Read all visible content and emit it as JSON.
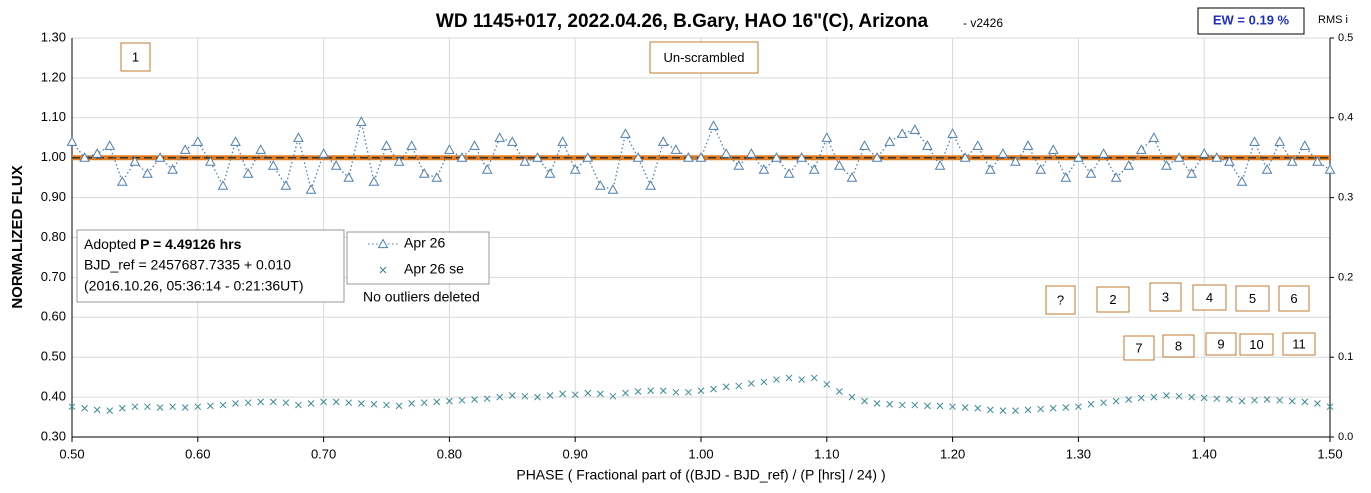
{
  "chart_data": {
    "type": "scatter",
    "title": "WD 1145+017, 2022.04.26, B.Gary, HAO 16\"(C), Arizona",
    "subtitle": "- v2426",
    "ew_label": "EW = 0.19 %",
    "y2_label": "RMS i",
    "y_label": "NORMALIZED FLUX",
    "x_label": "PHASE ( Fractional part of ((BJD - BJD_ref) / (P [hrs] / 24) )",
    "info": {
      "prefix": "Adopted ",
      "period": "P = 4.49126 hrs",
      "line2": "BJD_ref = 2457687.7335 + 0.010",
      "line3": "(2016.10.26, 05:36:14 - 0:21:36UT)"
    },
    "note": "No outliers deleted",
    "annotations": [
      "1",
      "Un-scrambled",
      "?",
      "2",
      "3",
      "4",
      "5",
      "6",
      "7",
      "8",
      "9",
      "10",
      "11"
    ],
    "model_level": 1.0,
    "grid": true,
    "xlim": [
      0.5,
      1.5
    ],
    "ylim": [
      0.3,
      1.3
    ],
    "y2lim": [
      0,
      0.5
    ],
    "xticks": [
      {
        "value": 0.5,
        "label": "0.50"
      },
      {
        "value": 0.6,
        "label": "0.60"
      },
      {
        "value": 0.7,
        "label": "0.70"
      },
      {
        "value": 0.8,
        "label": "0.80"
      },
      {
        "value": 0.9,
        "label": "0.90"
      },
      {
        "value": 1.0,
        "label": "1.00"
      },
      {
        "value": 1.1,
        "label": "1.10"
      },
      {
        "value": 1.2,
        "label": "1.20"
      },
      {
        "value": 1.3,
        "label": "1.30"
      },
      {
        "value": 1.4,
        "label": "1.40"
      },
      {
        "value": 1.5,
        "label": "1.50"
      }
    ],
    "yticks": [
      {
        "value": 0.3,
        "label": "0.30"
      },
      {
        "value": 0.4,
        "label": "0.40"
      },
      {
        "value": 0.5,
        "label": "0.50"
      },
      {
        "value": 0.6,
        "label": "0.60"
      },
      {
        "value": 0.7,
        "label": "0.70"
      },
      {
        "value": 0.8,
        "label": "0.80"
      },
      {
        "value": 0.9,
        "label": "0.90"
      },
      {
        "value": 1.0,
        "label": "1.00"
      },
      {
        "value": 1.1,
        "label": "1.10"
      },
      {
        "value": 1.2,
        "label": "1.20"
      },
      {
        "value": 1.3,
        "label": "1.30"
      }
    ],
    "y2ticks": [
      {
        "value": 0,
        "label": "0.0"
      },
      0.1,
      0.2,
      0.3,
      0.4,
      0.5
    ],
    "x": [
      0.5,
      0.51,
      0.52,
      0.53,
      0.54,
      0.55,
      0.56,
      0.57,
      0.58,
      0.59,
      0.6,
      0.61,
      0.62,
      0.63,
      0.64,
      0.65,
      0.66,
      0.67,
      0.68,
      0.69,
      0.7,
      0.71,
      0.72,
      0.73,
      0.74,
      0.75,
      0.76,
      0.77,
      0.78,
      0.79,
      0.8,
      0.81,
      0.82,
      0.83,
      0.84,
      0.85,
      0.86,
      0.87,
      0.88,
      0.89,
      0.9,
      0.91,
      0.92,
      0.93,
      0.94,
      0.95,
      0.96,
      0.97,
      0.98,
      0.99,
      1.0,
      1.01,
      1.02,
      1.03,
      1.04,
      1.05,
      1.06,
      1.07,
      1.08,
      1.09,
      1.1,
      1.11,
      1.12,
      1.13,
      1.14,
      1.15,
      1.16,
      1.17,
      1.18,
      1.19,
      1.2,
      1.21,
      1.22,
      1.23,
      1.24,
      1.25,
      1.26,
      1.27,
      1.28,
      1.29,
      1.3,
      1.31,
      1.32,
      1.33,
      1.34,
      1.35,
      1.36,
      1.37,
      1.38,
      1.39,
      1.4,
      1.41,
      1.42,
      1.43,
      1.44,
      1.45,
      1.46,
      1.47,
      1.48,
      1.49,
      1.5
    ],
    "series": [
      {
        "name": "Apr 26",
        "color": "#4f7fae",
        "values": [
          1.04,
          1.0,
          1.01,
          1.03,
          0.94,
          0.99,
          0.96,
          1.0,
          0.97,
          1.02,
          1.04,
          0.99,
          0.93,
          1.04,
          0.96,
          1.02,
          0.98,
          0.93,
          1.05,
          0.92,
          1.01,
          0.98,
          0.95,
          1.09,
          0.94,
          1.03,
          0.99,
          1.03,
          0.96,
          0.95,
          1.02,
          1.0,
          1.03,
          0.97,
          1.05,
          1.04,
          0.99,
          1.0,
          0.96,
          1.04,
          0.97,
          1.0,
          0.93,
          0.92,
          1.06,
          1.0,
          0.93,
          1.04,
          1.02,
          1.0,
          1.0,
          1.08,
          1.01,
          0.98,
          1.01,
          0.97,
          1.0,
          0.96,
          1.0,
          0.97,
          1.05,
          0.98,
          0.95,
          1.03,
          1.0,
          1.04,
          1.06,
          1.07,
          1.03,
          0.98,
          1.06,
          1.0,
          1.03,
          0.97,
          1.01,
          0.99,
          1.03,
          0.97,
          1.02,
          0.95,
          1.0,
          0.96,
          1.01,
          0.95,
          0.98,
          1.02,
          1.05,
          0.98,
          1.0,
          0.96,
          1.01,
          1.0,
          0.99,
          0.94,
          1.04,
          0.97,
          1.04,
          0.99,
          1.03,
          0.99,
          0.97
        ]
      },
      {
        "name": "Apr 26 se",
        "color": "#3a8a9a",
        "axis": "y2",
        "values": [
          0.038,
          0.036,
          0.034,
          0.033,
          0.036,
          0.038,
          0.038,
          0.037,
          0.038,
          0.037,
          0.038,
          0.039,
          0.04,
          0.042,
          0.043,
          0.044,
          0.044,
          0.043,
          0.04,
          0.042,
          0.044,
          0.044,
          0.043,
          0.042,
          0.041,
          0.04,
          0.039,
          0.042,
          0.043,
          0.044,
          0.045,
          0.046,
          0.047,
          0.048,
          0.05,
          0.052,
          0.051,
          0.05,
          0.052,
          0.054,
          0.053,
          0.055,
          0.054,
          0.051,
          0.055,
          0.057,
          0.058,
          0.058,
          0.056,
          0.056,
          0.058,
          0.06,
          0.063,
          0.064,
          0.067,
          0.069,
          0.072,
          0.074,
          0.072,
          0.074,
          0.066,
          0.057,
          0.05,
          0.045,
          0.042,
          0.041,
          0.04,
          0.04,
          0.039,
          0.039,
          0.038,
          0.037,
          0.036,
          0.034,
          0.033,
          0.033,
          0.034,
          0.035,
          0.036,
          0.037,
          0.038,
          0.041,
          0.043,
          0.045,
          0.047,
          0.049,
          0.05,
          0.052,
          0.051,
          0.05,
          0.049,
          0.048,
          0.047,
          0.045,
          0.046,
          0.047,
          0.046,
          0.045,
          0.044,
          0.042,
          0.038
        ]
      }
    ]
  }
}
